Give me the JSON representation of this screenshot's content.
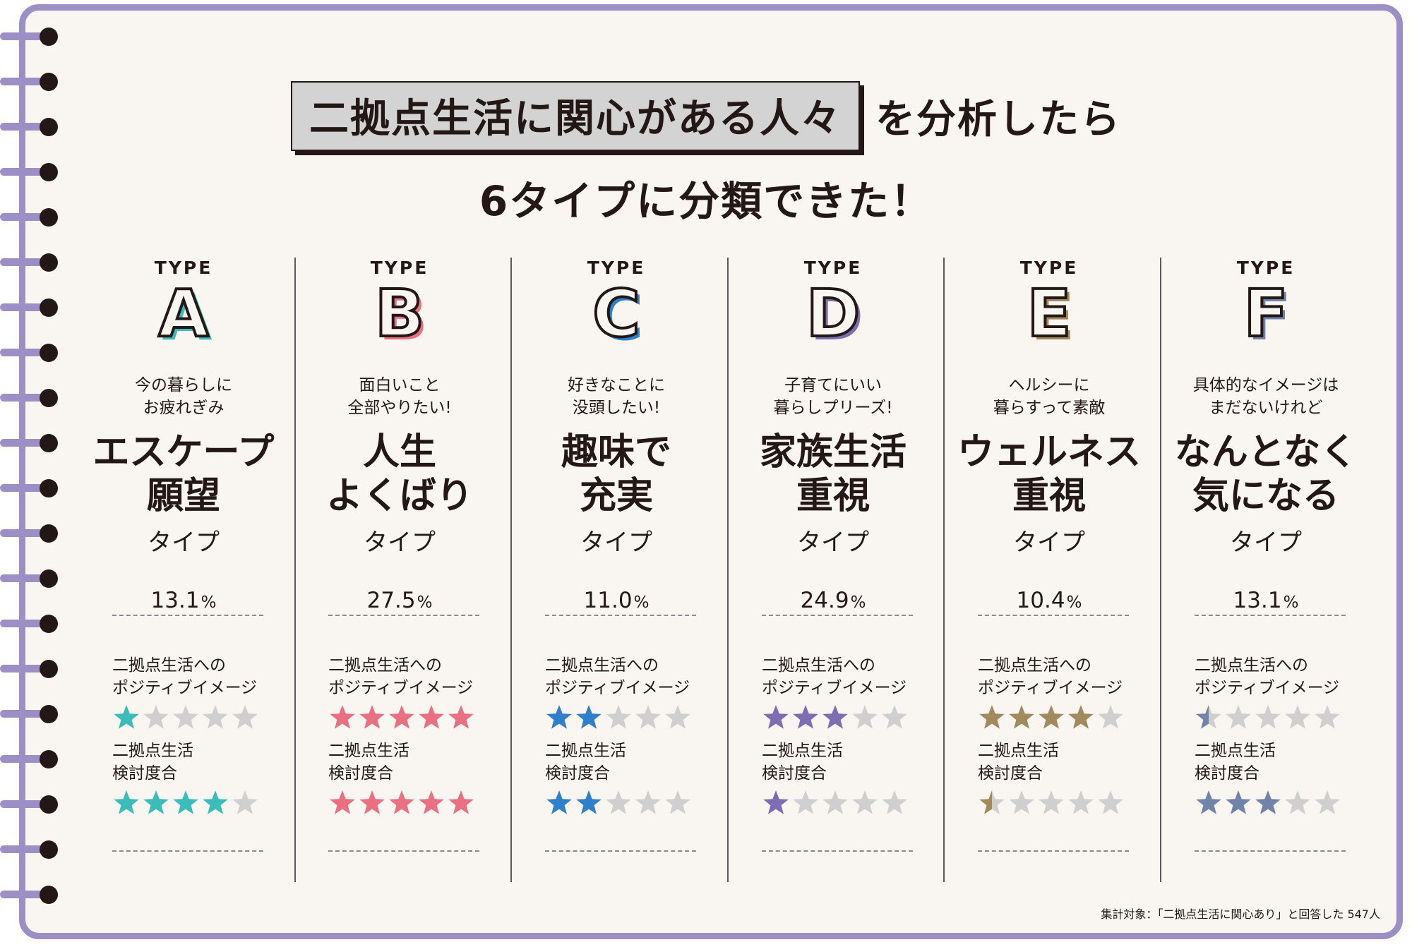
{
  "headline": {
    "highlight": "二拠点生活に関心がある人々",
    "tail": "を分析したら",
    "line2": "6タイプに分類できた！"
  },
  "type_label": "TYPE",
  "positive_label": [
    "二拠点生活への",
    "ポジティブイメージ"
  ],
  "consider_label": [
    "二拠点生活",
    "検討度合"
  ],
  "percent_unit": "%",
  "types": [
    {
      "letter": "A",
      "color": "#3bbcb8",
      "subtitle": [
        "今の暮らしに",
        "お疲れぎみ"
      ],
      "name": [
        "エスケープ",
        "願望"
      ],
      "suffix": "タイプ",
      "percent": "13.1",
      "positive": 1,
      "consider": 4
    },
    {
      "letter": "B",
      "color": "#e87080",
      "subtitle": [
        "面白いこと",
        "全部やりたい!"
      ],
      "name": [
        "人生",
        "よくばり"
      ],
      "suffix": "タイプ",
      "percent": "27.5",
      "positive": 5,
      "consider": 5
    },
    {
      "letter": "C",
      "color": "#2f7fcb",
      "subtitle": [
        "好きなことに",
        "没頭したい!"
      ],
      "name": [
        "趣味で",
        "充実"
      ],
      "suffix": "タイプ",
      "percent": "11.0",
      "positive": 2,
      "consider": 2
    },
    {
      "letter": "D",
      "color": "#7f6db3",
      "subtitle": [
        "子育てにいい",
        "暮らしプリーズ!"
      ],
      "name": [
        "家族生活",
        "重視"
      ],
      "suffix": "タイプ",
      "percent": "24.9",
      "positive": 3,
      "consider": 1
    },
    {
      "letter": "E",
      "color": "#a18a5e",
      "subtitle": [
        "ヘルシーに",
        "暮らすって素敵"
      ],
      "name": [
        "ウェルネス",
        "重視"
      ],
      "suffix": "タイプ",
      "percent": "10.4",
      "positive": 4,
      "consider": 0.5
    },
    {
      "letter": "F",
      "color": "#6f84a8",
      "subtitle": [
        "具体的なイメージは",
        "まだないけれど"
      ],
      "name": [
        "なんとなく",
        "気になる"
      ],
      "suffix": "タイプ",
      "percent": "13.1",
      "positive": 0.5,
      "consider": 3
    }
  ],
  "star_empty_color": "#cfcfcf",
  "star_max": 5,
  "footnote": "集計対象：「二拠点生活に関心あり」と回答した 547人"
}
